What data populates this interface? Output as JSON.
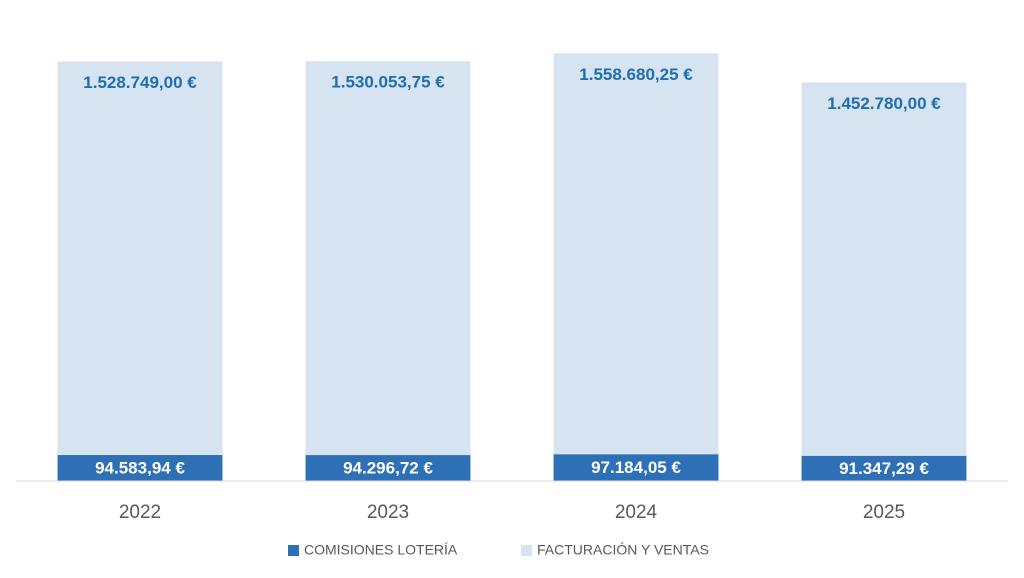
{
  "chart_data": {
    "type": "overlapped-bar",
    "categories": [
      "2022",
      "2023",
      "2024",
      "2025"
    ],
    "series": [
      {
        "name": "COMISIONES LOTERÍA",
        "color": "#2e70b5",
        "values": [
          94583.94,
          94296.72,
          97184.05,
          91347.29
        ],
        "value_labels": [
          "94.583,94 €",
          "94.296,72 €",
          "97.184,05 €",
          "91.347,29 €"
        ]
      },
      {
        "name": "FACTURACIÓN Y VENTAS",
        "color": "#d6e3f0",
        "values": [
          1528749.0,
          1530053.75,
          1558680.25,
          1452780.0
        ],
        "value_labels": [
          "1.528.749,00 €",
          "1.530.053,75 €",
          "1.558.680,25 €",
          "1.452.780,00 €"
        ]
      }
    ],
    "ylim": [
      0,
      1600000
    ],
    "legend": "bottom"
  }
}
